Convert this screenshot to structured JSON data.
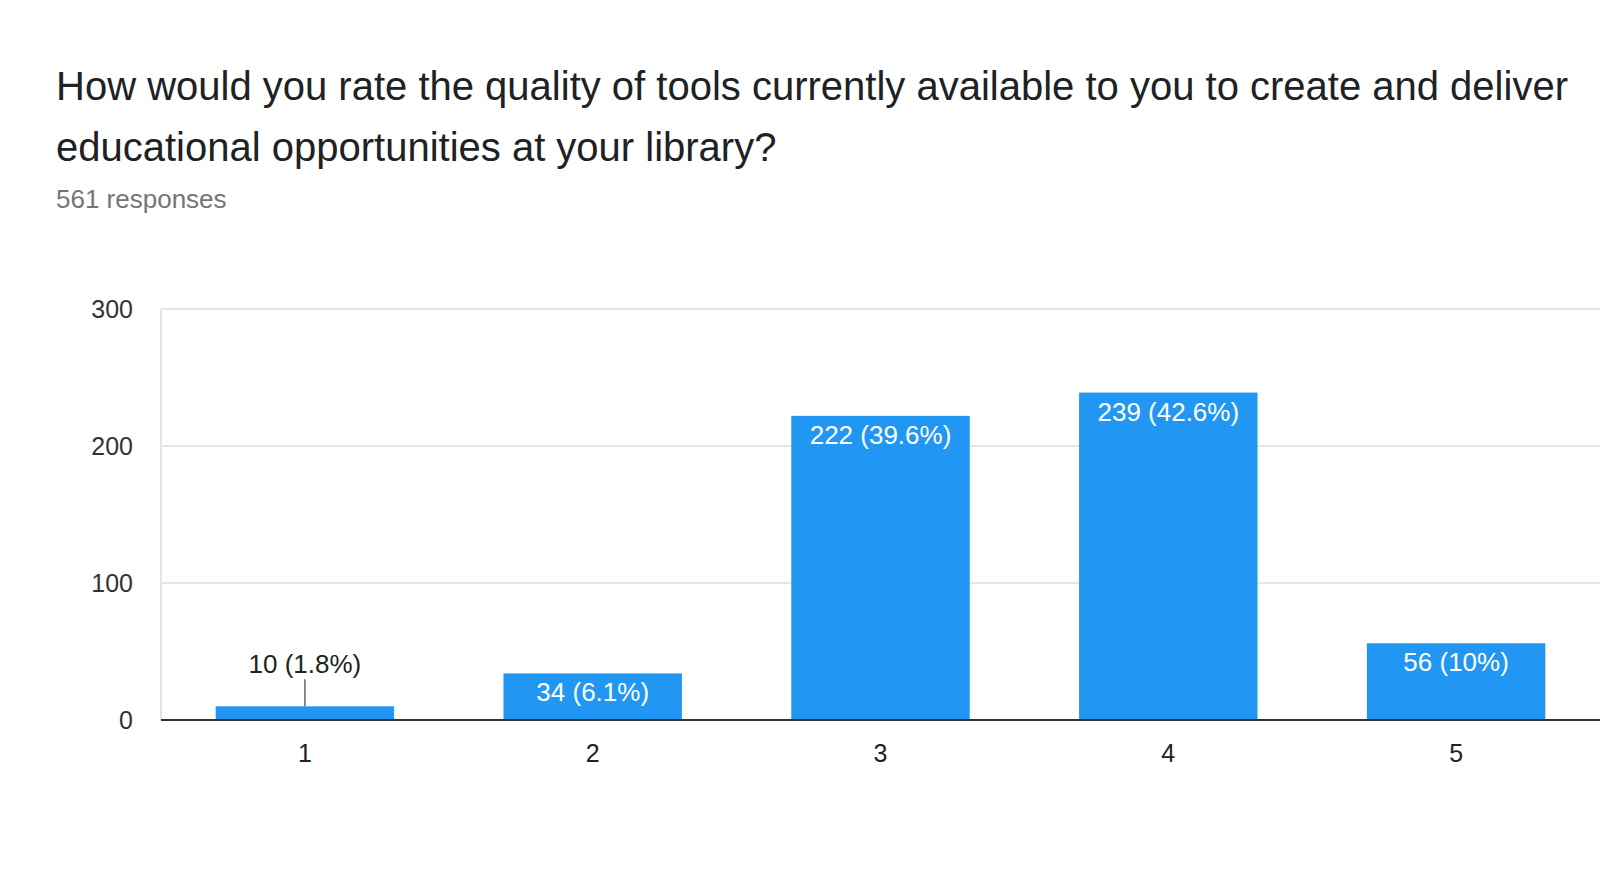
{
  "chart_data": {
    "type": "bar",
    "title": "How would you rate the quality of tools currently available to you to create and deliver educational opportunities at your library?",
    "subtitle": "561 responses",
    "categories": [
      "1",
      "2",
      "3",
      "4",
      "5"
    ],
    "values": [
      10,
      34,
      222,
      239,
      56
    ],
    "value_labels": [
      "10 (1.8%)",
      "34 (6.1%)",
      "222 (39.6%)",
      "239 (42.6%)",
      "56 (10%)"
    ],
    "data_labels": true,
    "color": "#2196f3",
    "ylim": [
      0,
      300
    ],
    "yticks": [
      0,
      100,
      200,
      300
    ],
    "grid": true
  }
}
